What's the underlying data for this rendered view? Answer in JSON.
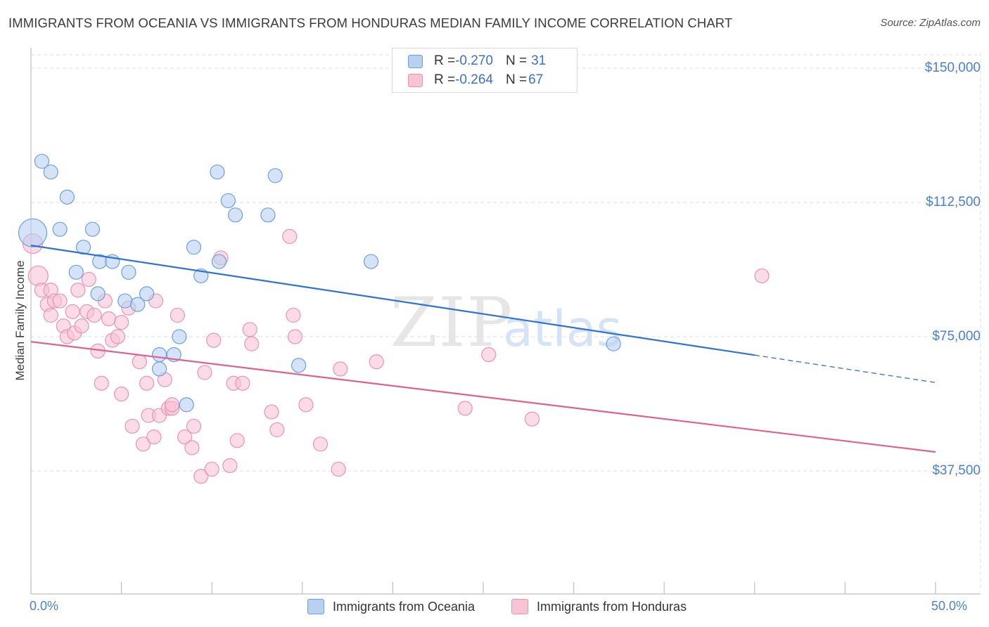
{
  "title": "IMMIGRANTS FROM OCEANIA VS IMMIGRANTS FROM HONDURAS MEDIAN FAMILY INCOME CORRELATION CHART",
  "source": "Source: ZipAtlas.com",
  "watermark": {
    "zip": "ZIP",
    "atlas": "atlas"
  },
  "colors": {
    "blue_fill": "#b8d0f2",
    "blue_stroke": "#6d9ee0",
    "blue_line": "#2f73d2",
    "pink_fill": "#f8c3d3",
    "pink_stroke": "#e993b0",
    "pink_line": "#e06090",
    "tick_text": "#4a7fd1",
    "grid": "#dcdcdc"
  },
  "legend": {
    "rows": [
      {
        "r_label": "R = ",
        "r_value": "-0.270",
        "n_label": "N = ",
        "n_value": "31"
      },
      {
        "r_label": "R = ",
        "r_value": "-0.264",
        "n_label": "N = ",
        "n_value": "67"
      }
    ]
  },
  "chart_data": {
    "type": "scatter",
    "title": "IMMIGRANTS FROM OCEANIA VS IMMIGRANTS FROM HONDURAS MEDIAN FAMILY INCOME CORRELATION CHART",
    "xlabel": "",
    "ylabel": "Median Family Income",
    "xlim": [
      0,
      50
    ],
    "ylim": [
      0,
      155000
    ],
    "x_tick_labels": [
      "0.0%",
      "50.0%"
    ],
    "y_ticks": [
      37500,
      75000,
      112500,
      150000
    ],
    "y_tick_labels": [
      "$37,500",
      "$75,000",
      "$112,500",
      "$150,000"
    ],
    "grid": true,
    "series": [
      {
        "name": "Immigrants from Oceania",
        "color": "blue",
        "r": -0.27,
        "n": 31,
        "trend": {
          "x0": 0,
          "y0": 100500,
          "x_solid_end": 40,
          "x1": 50,
          "y1": 62200
        },
        "points": [
          [
            0.1,
            104000,
            20
          ],
          [
            0.6,
            124000,
            10
          ],
          [
            1.1,
            121000,
            10
          ],
          [
            2.0,
            114000,
            10
          ],
          [
            1.6,
            105000,
            10
          ],
          [
            3.4,
            105000,
            10
          ],
          [
            2.9,
            100000,
            10
          ],
          [
            2.5,
            93000,
            10
          ],
          [
            3.8,
            96000,
            10
          ],
          [
            4.5,
            96000,
            10
          ],
          [
            5.4,
            93000,
            10
          ],
          [
            3.7,
            87000,
            10
          ],
          [
            5.2,
            85000,
            10
          ],
          [
            6.4,
            87000,
            10
          ],
          [
            5.9,
            84000,
            10
          ],
          [
            9.0,
            100000,
            10
          ],
          [
            9.4,
            92000,
            10
          ],
          [
            10.3,
            121000,
            10
          ],
          [
            10.9,
            113000,
            10
          ],
          [
            11.3,
            109000,
            10
          ],
          [
            10.4,
            96000,
            10
          ],
          [
            13.1,
            109000,
            10
          ],
          [
            13.5,
            120000,
            10
          ],
          [
            18.8,
            96000,
            10
          ],
          [
            7.1,
            70000,
            10
          ],
          [
            7.1,
            66000,
            10
          ],
          [
            7.9,
            70000,
            10
          ],
          [
            8.2,
            75000,
            10
          ],
          [
            8.6,
            56000,
            10
          ],
          [
            14.8,
            67000,
            10
          ],
          [
            32.2,
            73000,
            10
          ]
        ]
      },
      {
        "name": "Immigrants from Honduras",
        "color": "pink",
        "r": -0.264,
        "n": 67,
        "trend": {
          "x0": 0,
          "y0": 73600,
          "x1": 50,
          "y1": 42800
        },
        "points": [
          [
            0.1,
            101000,
            14
          ],
          [
            0.4,
            92000,
            14
          ],
          [
            0.6,
            88000,
            10
          ],
          [
            0.9,
            84000,
            10
          ],
          [
            1.1,
            88000,
            10
          ],
          [
            1.1,
            81000,
            10
          ],
          [
            1.3,
            85000,
            10
          ],
          [
            1.6,
            85000,
            10
          ],
          [
            1.8,
            78000,
            10
          ],
          [
            2.0,
            75000,
            10
          ],
          [
            2.3,
            82000,
            10
          ],
          [
            2.4,
            76000,
            10
          ],
          [
            2.6,
            88000,
            10
          ],
          [
            2.8,
            78000,
            10
          ],
          [
            3.1,
            82000,
            10
          ],
          [
            3.2,
            91000,
            10
          ],
          [
            3.5,
            81000,
            10
          ],
          [
            3.7,
            71000,
            10
          ],
          [
            3.9,
            62000,
            10
          ],
          [
            4.1,
            85000,
            10
          ],
          [
            4.3,
            80000,
            10
          ],
          [
            4.5,
            74000,
            10
          ],
          [
            4.8,
            75000,
            10
          ],
          [
            5.0,
            79000,
            10
          ],
          [
            5.0,
            59000,
            10
          ],
          [
            5.4,
            83000,
            10
          ],
          [
            5.6,
            50000,
            10
          ],
          [
            6.0,
            68000,
            10
          ],
          [
            6.2,
            45000,
            10
          ],
          [
            6.4,
            62000,
            10
          ],
          [
            6.5,
            53000,
            10
          ],
          [
            6.8,
            47000,
            10
          ],
          [
            6.9,
            85000,
            10
          ],
          [
            7.1,
            53000,
            10
          ],
          [
            7.4,
            63000,
            10
          ],
          [
            7.6,
            55000,
            10
          ],
          [
            7.8,
            55000,
            10
          ],
          [
            7.8,
            56000,
            10
          ],
          [
            8.1,
            81000,
            10
          ],
          [
            8.5,
            47000,
            10
          ],
          [
            8.9,
            44000,
            10
          ],
          [
            9.0,
            50000,
            10
          ],
          [
            9.4,
            36000,
            10
          ],
          [
            9.6,
            65000,
            10
          ],
          [
            10.0,
            38000,
            10
          ],
          [
            10.1,
            74000,
            10
          ],
          [
            10.5,
            97000,
            10
          ],
          [
            11.0,
            39000,
            10
          ],
          [
            11.2,
            62000,
            10
          ],
          [
            11.4,
            46000,
            10
          ],
          [
            11.7,
            62000,
            10
          ],
          [
            12.1,
            77000,
            10
          ],
          [
            12.2,
            73000,
            10
          ],
          [
            13.3,
            54000,
            10
          ],
          [
            13.6,
            49000,
            10
          ],
          [
            14.3,
            103000,
            10
          ],
          [
            14.5,
            81000,
            10
          ],
          [
            14.6,
            75000,
            10
          ],
          [
            15.2,
            56000,
            10
          ],
          [
            16.0,
            45000,
            10
          ],
          [
            17.0,
            38000,
            10
          ],
          [
            17.1,
            66000,
            10
          ],
          [
            19.1,
            68000,
            10
          ],
          [
            24.0,
            55000,
            10
          ],
          [
            25.3,
            70000,
            10
          ],
          [
            27.7,
            52000,
            10
          ],
          [
            40.4,
            92000,
            10
          ]
        ]
      }
    ]
  }
}
